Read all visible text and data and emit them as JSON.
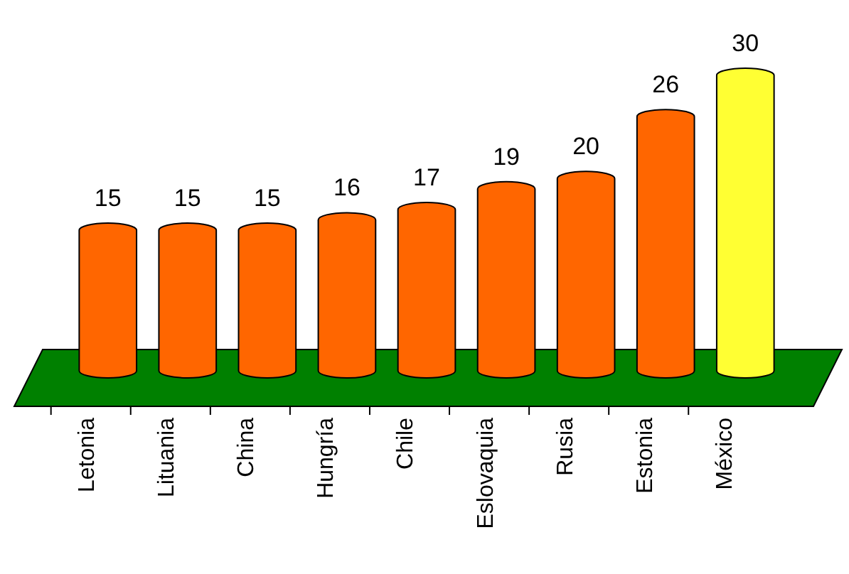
{
  "chart_data": {
    "type": "bar",
    "categories": [
      "Letonia",
      "Lituania",
      "China",
      "Hungría",
      "Chile",
      "Eslovaquia",
      "Rusia",
      "Estonia",
      "México"
    ],
    "values": [
      15,
      15,
      15,
      16,
      17,
      19,
      20,
      26,
      30
    ],
    "colors": [
      "#ff6600",
      "#ff6600",
      "#ff6600",
      "#ff6600",
      "#ff6600",
      "#ff6600",
      "#ff6600",
      "#ff6600",
      "#ffff33"
    ],
    "data_labels": true
  }
}
